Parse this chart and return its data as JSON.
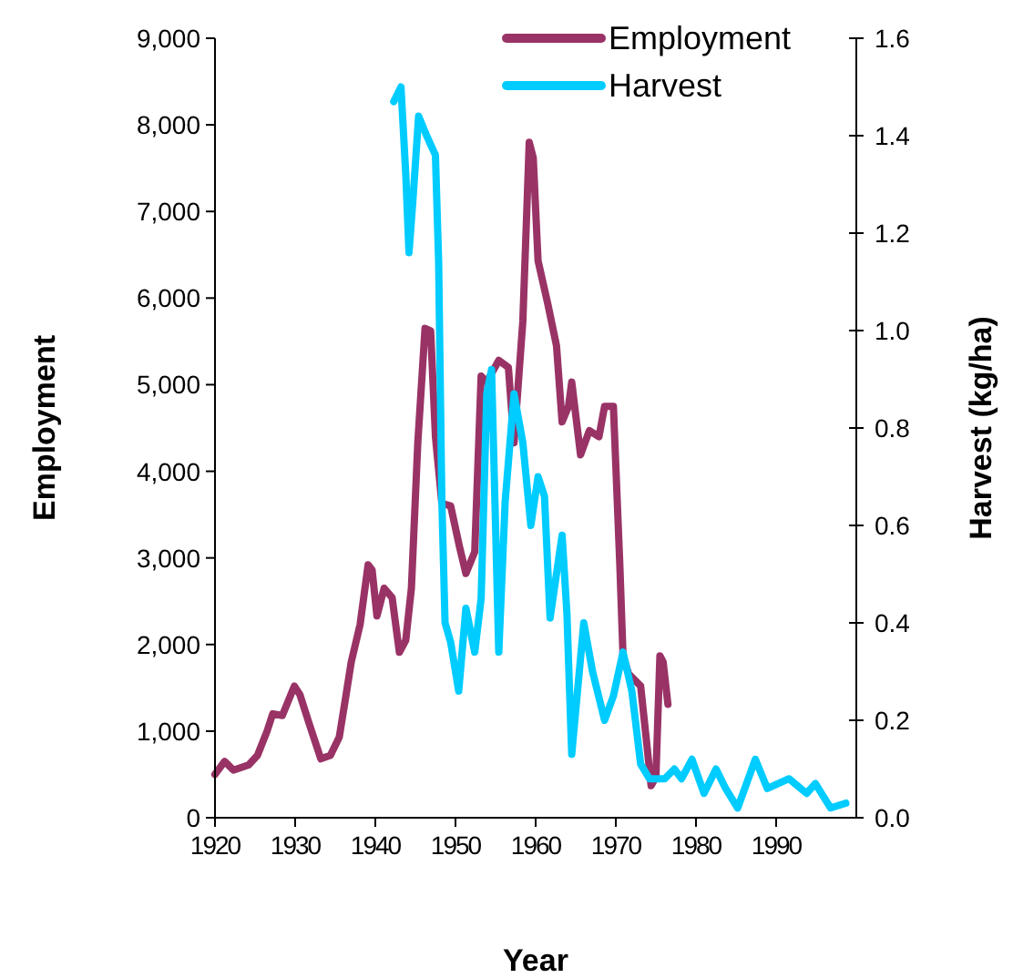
{
  "chart_data": {
    "type": "line",
    "xlabel": "Year",
    "ylabel": "Employment",
    "y2label": "Harvest (kg/ha)",
    "xlim": [
      1920,
      2000
    ],
    "xticks": [
      1920,
      1930,
      1940,
      1950,
      1960,
      1970,
      1980,
      1990
    ],
    "ylim": [
      0,
      9000
    ],
    "yticks": [
      0,
      {
        "value": 1000,
        "label": "1,000"
      },
      {
        "value": 2000,
        "label": "2,000"
      },
      {
        "value": 3000,
        "label": "3,000"
      },
      {
        "value": 4000,
        "label": "4,000"
      },
      {
        "value": 5000,
        "label": "5,000"
      },
      {
        "value": 6000,
        "label": "6,000"
      },
      {
        "value": 7000,
        "label": "7,000"
      },
      {
        "value": 8000,
        "label": "8,000"
      },
      {
        "value": 9000,
        "label": "9,000"
      }
    ],
    "y2lim": [
      0,
      1.6
    ],
    "y2ticks": [
      {
        "value": 0,
        "label": "0.0"
      },
      0.2,
      0.4,
      0.6,
      0.8,
      {
        "value": 1,
        "label": "1.0"
      },
      1.2,
      1.4,
      1.6
    ],
    "legend": "top right",
    "grid": false,
    "marker": "none",
    "line_style": "solid",
    "series": [
      {
        "name": "Employment",
        "color": "#993366",
        "x": [
          1920,
          1921.2,
          1922.3,
          1924.2,
          1925.3,
          1926.5,
          1927.2,
          1928.4,
          1929.9,
          1930.6,
          1931.7,
          1933.2,
          1934.4,
          1935.5,
          1936.3,
          1937,
          1938.1,
          1939.1,
          1939.6,
          1940.2,
          1941.1,
          1942.1,
          1943,
          1943.8,
          1944.5,
          1945.3,
          1946.2,
          1946.9,
          1947.5,
          1948.3,
          1949.4,
          1950.5,
          1951.3,
          1952.4,
          1953.2,
          1953.9,
          1955.4,
          1956.6,
          1957.3,
          1958.4,
          1959.2,
          1959.7,
          1960.3,
          1961.5,
          1962.6,
          1963.3,
          1964.1,
          1964.5,
          1965.6,
          1966.7,
          1967.9,
          1968.6,
          1969.7,
          1970.5,
          1970.9,
          1971.6,
          1973.1,
          1973.9,
          1974.4,
          1975,
          1975.5,
          1975.9,
          1976.5
        ],
        "values": [
          500,
          650,
          550,
          610,
          720,
          1000,
          1200,
          1180,
          1520,
          1420,
          1100,
          680,
          720,
          930,
          1390,
          1800,
          2230,
          2920,
          2860,
          2330,
          2650,
          2540,
          1910,
          2050,
          2650,
          4330,
          5650,
          5620,
          4400,
          3630,
          3600,
          3130,
          2820,
          3070,
          5100,
          5030,
          5280,
          5200,
          4330,
          5730,
          7800,
          7620,
          6430,
          5940,
          5450,
          4570,
          4750,
          5030,
          4190,
          4470,
          4400,
          4750,
          4750,
          2920,
          1870,
          1660,
          1520,
          820,
          370,
          470,
          1870,
          1800,
          1310
        ]
      },
      {
        "name": "Harvest",
        "color": "#00ccff",
        "axis": "y2",
        "x": [
          1942.3,
          1943.2,
          1943.8,
          1944.2,
          1944.7,
          1945.4,
          1946.4,
          1947.5,
          1947.9,
          1948.3,
          1948.7,
          1949.4,
          1950.4,
          1951.3,
          1952.4,
          1953.2,
          1953.9,
          1954.5,
          1955.4,
          1956.2,
          1957.3,
          1958.4,
          1959.4,
          1960.3,
          1961.1,
          1961.8,
          1963.3,
          1963.9,
          1964.5,
          1966,
          1967.1,
          1968.6,
          1969.7,
          1970.9,
          1972,
          1973.1,
          1974.2,
          1976.1,
          1977.3,
          1978.2,
          1979.5,
          1981,
          1982.5,
          1983.7,
          1985.2,
          1987.4,
          1988.9,
          1991.6,
          1993.8,
          1994.9,
          1996.8,
          1998.7
        ],
        "values": [
          1.47,
          1.5,
          1.32,
          1.16,
          1.27,
          1.44,
          1.4,
          1.36,
          1.14,
          0.65,
          0.4,
          0.36,
          0.26,
          0.43,
          0.34,
          0.45,
          0.87,
          0.92,
          0.34,
          0.65,
          0.87,
          0.77,
          0.6,
          0.7,
          0.66,
          0.41,
          0.58,
          0.42,
          0.13,
          0.4,
          0.3,
          0.2,
          0.25,
          0.34,
          0.26,
          0.11,
          0.08,
          0.08,
          0.1,
          0.08,
          0.12,
          0.05,
          0.1,
          0.06,
          0.02,
          0.12,
          0.06,
          0.08,
          0.05,
          0.07,
          0.02,
          0.03
        ]
      }
    ]
  }
}
